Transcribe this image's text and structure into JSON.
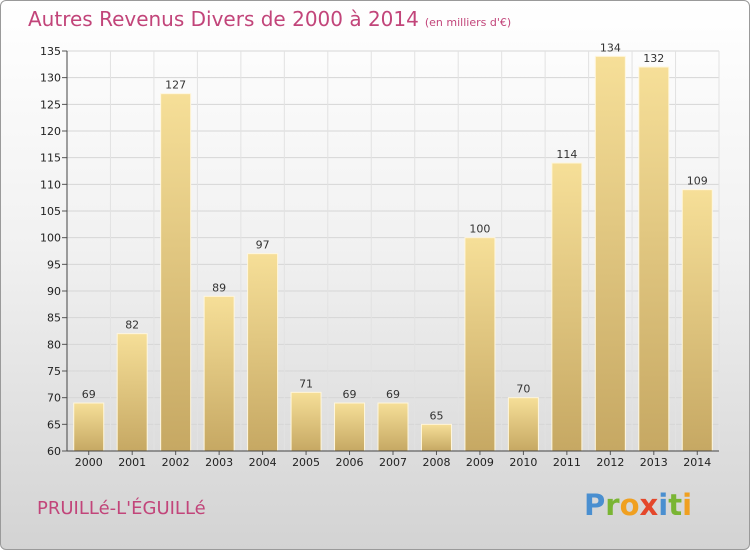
{
  "title": "Autres Revenus Divers de 2000 à 2014",
  "unit_note": "(en milliers d'€)",
  "place": "PRUILLé-L'ÉGUILLé",
  "logo": {
    "letters": [
      "P",
      "r",
      "o",
      "x",
      "i",
      "t",
      "i"
    ],
    "colors": [
      "#4a8fd0",
      "#7ab534",
      "#f0a020",
      "#e4472b",
      "#4a8fd0",
      "#7ab534",
      "#f0a020"
    ]
  },
  "chart_data": {
    "type": "bar",
    "categories": [
      "2000",
      "2001",
      "2002",
      "2003",
      "2004",
      "2005",
      "2006",
      "2007",
      "2008",
      "2009",
      "2010",
      "2011",
      "2012",
      "2013",
      "2014"
    ],
    "values": [
      69,
      82,
      127,
      89,
      97,
      71,
      69,
      69,
      65,
      100,
      70,
      114,
      134,
      132,
      109
    ],
    "ylim": [
      60,
      135
    ],
    "yticks": [
      60,
      65,
      70,
      75,
      80,
      85,
      90,
      95,
      100,
      105,
      110,
      115,
      120,
      125,
      130,
      135
    ],
    "grid": true,
    "bar_color_top": "#f6df98",
    "bar_color_bottom": "#c6a863"
  }
}
